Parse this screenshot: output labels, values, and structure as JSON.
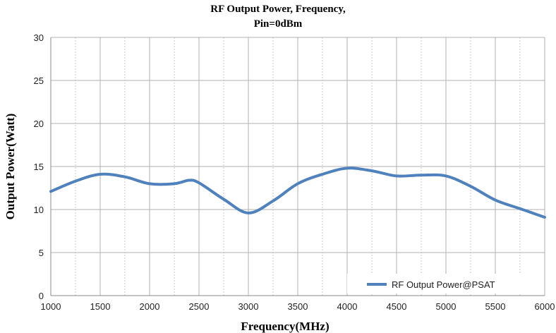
{
  "chart_data": {
    "type": "line",
    "title_lines": [
      "RF Output Power, Frequency,",
      "Pin=0dBm"
    ],
    "xlabel": "Frequency(MHz)",
    "ylabel": "Output Power(Watt)",
    "xlim": [
      1000,
      6000
    ],
    "ylim": [
      0,
      30
    ],
    "xticks": [
      1000,
      1500,
      2000,
      2500,
      3000,
      3500,
      4000,
      4500,
      5000,
      5500,
      6000
    ],
    "yticks": [
      0,
      5,
      10,
      15,
      20,
      25,
      30
    ],
    "grid": true,
    "legend_position": "bottom-right",
    "series": [
      {
        "name": "RF Output Power@PSAT",
        "color": "#4f81bd",
        "x": [
          1000,
          1250,
          1500,
          1750,
          2000,
          2250,
          2400,
          2500,
          2750,
          3000,
          3250,
          3500,
          3750,
          4000,
          4250,
          4500,
          4750,
          5000,
          5250,
          5500,
          5750,
          6000
        ],
        "y": [
          12.1,
          13.3,
          14.1,
          13.8,
          13.0,
          13.0,
          13.4,
          13.1,
          11.2,
          9.6,
          11.0,
          13.0,
          14.1,
          14.8,
          14.5,
          13.9,
          14.0,
          13.9,
          12.7,
          11.1,
          10.1,
          9.1
        ]
      }
    ]
  }
}
